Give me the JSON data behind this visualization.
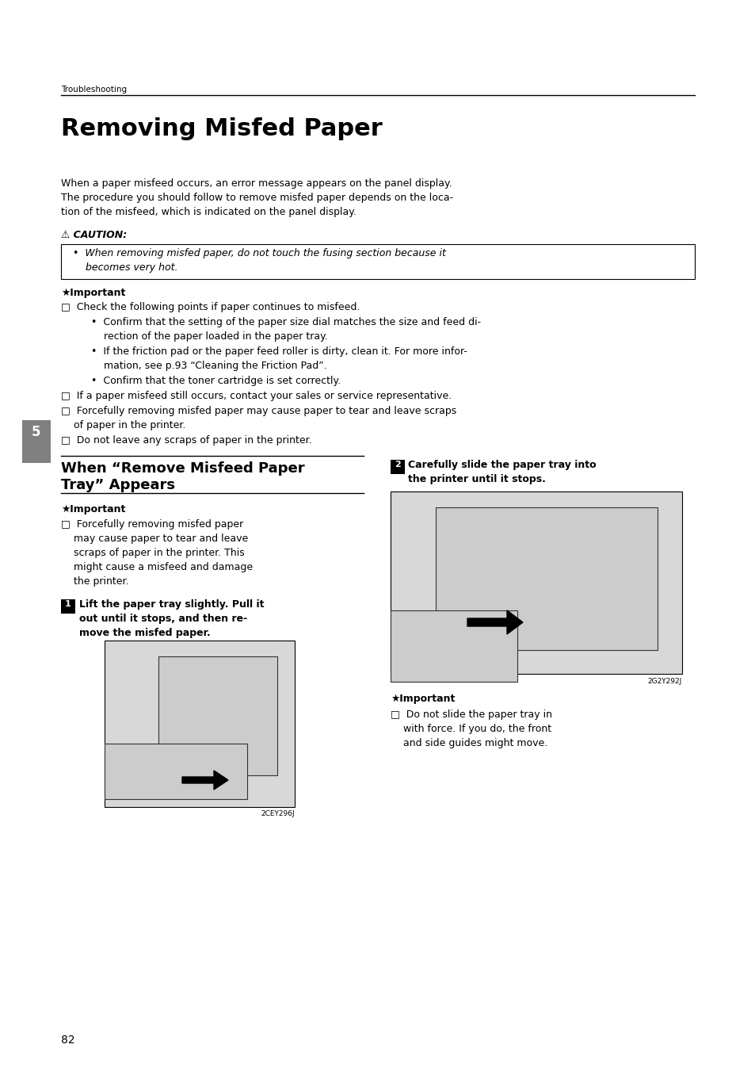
{
  "bg_color": "#ffffff",
  "page_width": 9.54,
  "page_height": 13.51,
  "header_text": "Troubleshooting",
  "main_title": "Removing Misfed Paper",
  "caution_label": "⚠ CAUTION:",
  "caution_line1": "•  When removing misfed paper, do not touch the fusing section because it",
  "caution_line2": "    becomes very hot.",
  "imp_label": "Important",
  "check_item": "□  Check the following points if paper continues to misfeed.",
  "bullet1_l1": "•  Confirm that the setting of the paper size dial matches the size and feed di-",
  "bullet1_l2": "    rection of the paper loaded in the paper tray.",
  "bullet2_l1": "•  If the friction pad or the paper feed roller is dirty, clean it. For more infor-",
  "bullet2_l2": "    mation, see p.93 “Cleaning the Friction Pad”.",
  "bullet3": "•  Confirm that the toner cartridge is set correctly.",
  "sq_item2": "□  If a paper misfeed still occurs, contact your sales or service representative.",
  "sq_item3_l1": "□  Forcefully removing misfed paper may cause paper to tear and leave scraps",
  "sq_item3_l2": "    of paper in the printer.",
  "sq_item4": "□  Do not leave any scraps of paper in the printer.",
  "sec2_title_l1": "When “Remove Misfeed Paper",
  "sec2_title_l2": "Tray” Appears",
  "imp2_text_l1": "□  Forcefully removing misfed paper",
  "imp2_text_l2": "    may cause paper to tear and leave",
  "imp2_text_l3": "    scraps of paper in the printer. This",
  "imp2_text_l4": "    might cause a misfeed and damage",
  "imp2_text_l5": "    the printer.",
  "step1_l1": "Lift the paper tray slightly. Pull it",
  "step1_l2": "out until it stops, and then re-",
  "step1_l3": "move the misfed paper.",
  "step2_l1": "Carefully slide the paper tray into",
  "step2_l2": "the printer until it stops.",
  "imp3_l1": "□  Do not slide the paper tray in",
  "imp3_l2": "    with force. If you do, the front",
  "imp3_l3": "    and side guides might move.",
  "fig1_caption": "2CEY296J",
  "fig2_caption": "2G2Y292J",
  "page_number": "82",
  "tab_number": "5",
  "tab_color": "#808080",
  "line_color": "#000000"
}
